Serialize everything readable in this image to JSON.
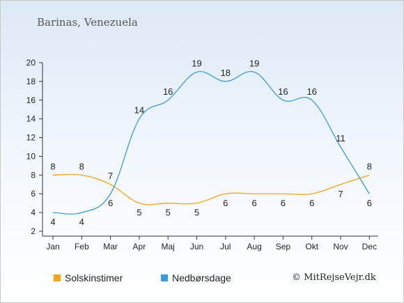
{
  "header": {
    "title": "Barinas, Venezuela"
  },
  "footer": {
    "credit": "© MitRejseVejr.dk"
  },
  "chart_data": {
    "type": "line",
    "categories": [
      "Jan",
      "Feb",
      "Mar",
      "Apr",
      "Maj",
      "Jun",
      "Jul",
      "Aug",
      "Sep",
      "Okt",
      "Nov",
      "Dec"
    ],
    "ylim": [
      2,
      20
    ],
    "yticks": [
      2,
      4,
      6,
      8,
      10,
      12,
      14,
      16,
      18,
      20
    ],
    "grid": false,
    "legend_position": "bottom-left",
    "series": [
      {
        "name": "Solskinstimer",
        "color": "#f5a31a",
        "values": [
          8,
          8,
          7,
          5,
          5,
          5,
          6,
          6,
          6,
          6,
          7,
          8
        ]
      },
      {
        "name": "Nedbørsdage",
        "color": "#3a9ae0",
        "values": [
          4,
          4,
          6,
          14,
          16,
          19,
          18,
          19,
          16,
          16,
          11,
          6
        ]
      }
    ]
  }
}
